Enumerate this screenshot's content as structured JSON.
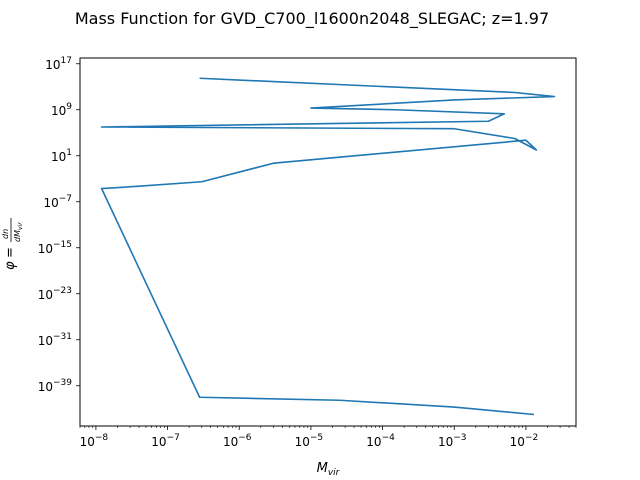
{
  "chart_data": {
    "type": "line",
    "title": "Mass Function for GVD_C700_l1600n2048_SLEGAC; z=1.97",
    "xlabel": "M_vir",
    "ylabel": "phi = dn/dM_vir",
    "x_scale": "log",
    "y_scale": "log",
    "xlim": [
      6e-09,
      0.05
    ],
    "ylim": [
      1e-46,
      1e+18
    ],
    "grid": false,
    "line_color": "#1f77b4",
    "x_ticks": [
      {
        "value": 1e-08,
        "base": "10",
        "exp": "−8"
      },
      {
        "value": 1e-07,
        "base": "10",
        "exp": "−7"
      },
      {
        "value": 1e-06,
        "base": "10",
        "exp": "−6"
      },
      {
        "value": 1e-05,
        "base": "10",
        "exp": "−5"
      },
      {
        "value": 0.0001,
        "base": "10",
        "exp": "−4"
      },
      {
        "value": 0.001,
        "base": "10",
        "exp": "−3"
      },
      {
        "value": 0.01,
        "base": "10",
        "exp": "−2"
      }
    ],
    "y_ticks": [
      {
        "value": 1e+17,
        "base": "10",
        "exp": "17"
      },
      {
        "value": 1000000000.0,
        "base": "10",
        "exp": "9"
      },
      {
        "value": 10.0,
        "base": "10",
        "exp": "1"
      },
      {
        "value": 1e-07,
        "base": "10",
        "exp": "−7"
      },
      {
        "value": 1e-15,
        "base": "10",
        "exp": "−15"
      },
      {
        "value": 1e-23,
        "base": "10",
        "exp": "−23"
      },
      {
        "value": 1e-31,
        "base": "10",
        "exp": "−31"
      },
      {
        "value": 1e-39,
        "base": "10",
        "exp": "−39"
      }
    ],
    "series": [
      {
        "x": [
          2.8e-07,
          0.007,
          0.025,
          0.001,
          1e-05,
          0.00015,
          0.005,
          0.003,
          1.2e-08,
          0.001,
          0.007,
          0.014,
          0.01,
          3e-06,
          3e-07,
          4e-08,
          1.2e-08,
          2.8e-07,
          2.5e-05,
          0.001,
          0.013
        ],
        "y": [
          300000000000000.0,
          1000000000000.0,
          200000000000.0,
          50000000000.0,
          2000000000.0,
          1000000000.0,
          200000000.0,
          10000000.0,
          1000000.0,
          500000.0,
          10000.0,
          100.0,
          5000.0,
          0.5,
          0.0003,
          5e-05,
          2e-05,
          1e-41,
          3e-42,
          2e-43,
          1e-44
        ]
      }
    ]
  }
}
